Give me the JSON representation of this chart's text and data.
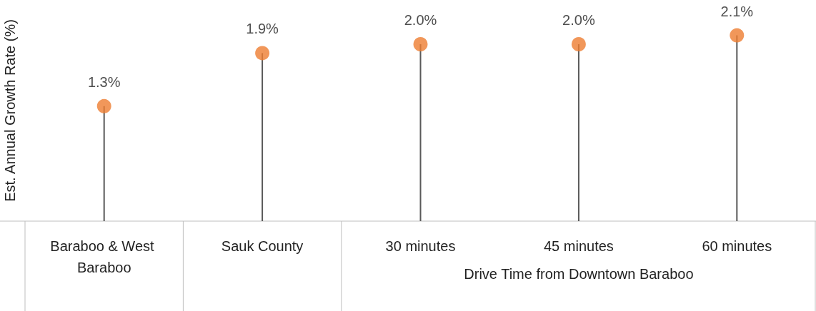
{
  "chart_data": {
    "type": "lollipop",
    "ylabel": "Est. Annual Growth Rate (%)",
    "categories": [
      "Baraboo & West Baraboo",
      "Sauk County",
      "30 minutes",
      "45 minutes",
      "60 minutes"
    ],
    "values": [
      1.3,
      1.9,
      2.0,
      2.0,
      2.1
    ],
    "value_labels": [
      "1.3%",
      "1.9%",
      "2.0%",
      "2.0%",
      "2.1%"
    ],
    "color": "#ed7d31",
    "marker": "circle",
    "grid": false,
    "annotations": [
      "Drive Time from Downtown Baraboo"
    ]
  }
}
